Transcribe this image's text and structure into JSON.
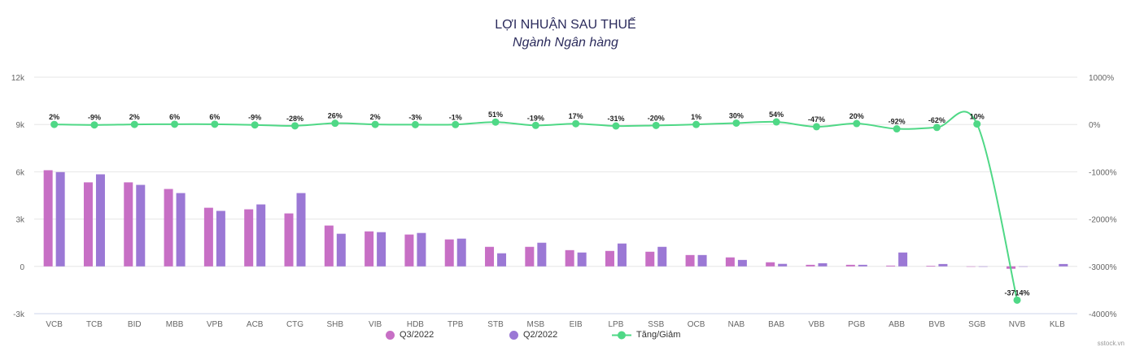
{
  "chart_data": {
    "type": "bar",
    "title": "LỢI NHUẬN SAU THUẾ",
    "subtitle": "Ngành Ngân hàng",
    "categories": [
      "VCB",
      "TCB",
      "BID",
      "MBB",
      "VPB",
      "ACB",
      "CTG",
      "SHB",
      "VIB",
      "HDB",
      "TPB",
      "STB",
      "MSB",
      "EIB",
      "LPB",
      "SSB",
      "OCB",
      "NAB",
      "BAB",
      "VBB",
      "PGB",
      "ABB",
      "BVB",
      "SGB",
      "NVB",
      "KLB"
    ],
    "series": [
      {
        "name": "Q3/2022",
        "type": "bar",
        "axis": "left",
        "color": "#c76fc5",
        "values": [
          6100,
          5330,
          5330,
          4910,
          3720,
          3620,
          3360,
          2590,
          2220,
          2020,
          1710,
          1240,
          1240,
          1030,
          980,
          930,
          720,
          570,
          260,
          100,
          100,
          50,
          40,
          0,
          -150,
          null
        ]
      },
      {
        "name": "Q2/2022",
        "type": "bar",
        "axis": "left",
        "color": "#9b78d5",
        "values": [
          5980,
          5840,
          5170,
          4650,
          3520,
          3930,
          4650,
          2070,
          2170,
          2120,
          1760,
          830,
          1500,
          880,
          1450,
          1240,
          720,
          410,
          160,
          200,
          100,
          880,
          150,
          0,
          0,
          150
        ]
      },
      {
        "name": "Tăng/Giảm",
        "type": "line",
        "axis": "right",
        "color": "#4fd886",
        "values": [
          2,
          -9,
          2,
          6,
          6,
          -9,
          -28,
          26,
          2,
          -3,
          -1,
          51,
          -19,
          17,
          -31,
          -20,
          1,
          30,
          54,
          -47,
          20,
          -92,
          -62,
          10,
          -3714,
          null
        ],
        "labels": [
          "2%",
          "-9%",
          "2%",
          "6%",
          "6%",
          "-9%",
          "-28%",
          "26%",
          "2%",
          "-3%",
          "-1%",
          "51%",
          "-19%",
          "17%",
          "-31%",
          "-20%",
          "1%",
          "30%",
          "54%",
          "-47%",
          "20%",
          "-92%",
          "-62%",
          "10%",
          "-3714%",
          ""
        ]
      }
    ],
    "left_axis": {
      "ylim": [
        -3000,
        12000
      ],
      "ticks": [
        12000,
        9000,
        6000,
        3000,
        0,
        -3000
      ],
      "tick_labels": [
        "12k",
        "9k",
        "6k",
        "3k",
        "0",
        "-3k"
      ]
    },
    "right_axis": {
      "ylim": [
        -4000,
        1000
      ],
      "ticks": [
        1000,
        0,
        -1000,
        -2000,
        -3000,
        -4000
      ],
      "tick_labels": [
        "1000%",
        "0%",
        "-1000%",
        "-2000%",
        "-3000%",
        "-4000%"
      ]
    },
    "grid": true,
    "legend_placement": "bottom"
  },
  "credit": "sstock.vn"
}
